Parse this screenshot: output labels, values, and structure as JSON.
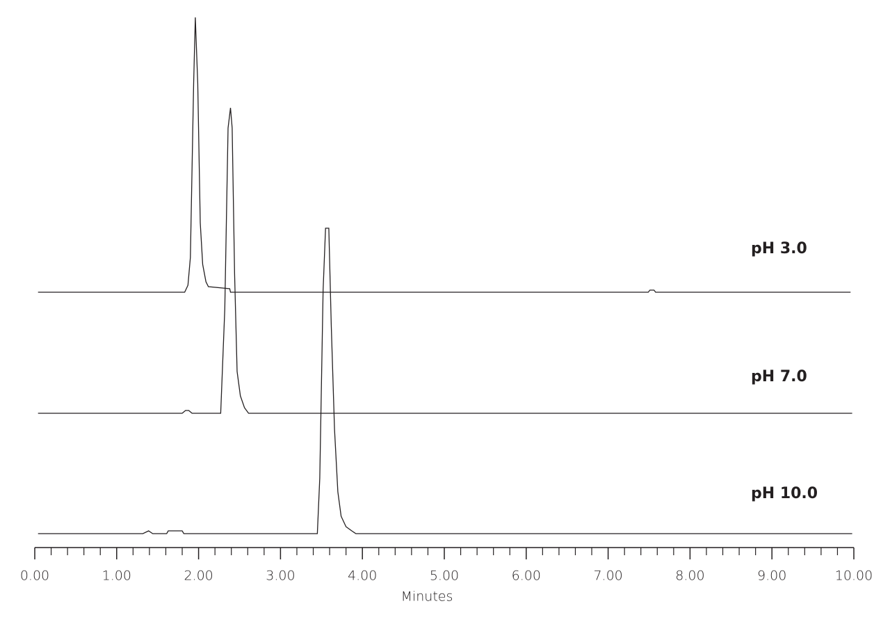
{
  "chart_data": {
    "type": "line",
    "x_label": "Minutes",
    "xlim": [
      0,
      10
    ],
    "xticks": [
      {
        "value": 0,
        "label": "0.00"
      },
      {
        "value": 1,
        "label": "1.00"
      },
      {
        "value": 2,
        "label": "2.00"
      },
      {
        "value": 3,
        "label": "3.00"
      },
      {
        "value": 4,
        "label": "4.00"
      },
      {
        "value": 5,
        "label": "5.00"
      },
      {
        "value": 6,
        "label": "6.00"
      },
      {
        "value": 7,
        "label": "7.00"
      },
      {
        "value": 8,
        "label": "8.00"
      },
      {
        "value": 9,
        "label": "9.00"
      },
      {
        "value": 10,
        "label": "10.00"
      }
    ],
    "minor_xticks": [
      0.2,
      0.4,
      0.6,
      0.8,
      1.2,
      1.4,
      1.6,
      1.8,
      2.2,
      2.4,
      2.6,
      2.8,
      3.2,
      3.4,
      3.6,
      3.8,
      4.2,
      4.4,
      4.6,
      4.8,
      5.2,
      5.4,
      5.6,
      5.8,
      6.2,
      6.4,
      6.6,
      6.8,
      7.2,
      7.4,
      7.6,
      7.8,
      8.2,
      8.4,
      8.6,
      8.8,
      9.2,
      9.4,
      9.6,
      9.8
    ],
    "series": [
      {
        "name": "pH 3.0",
        "color": "#231f20",
        "x": [
          0.04,
          1.83,
          1.87,
          1.9,
          1.94,
          1.96,
          1.99,
          2.02,
          2.05,
          2.09,
          2.12,
          2.38,
          2.39,
          7.49,
          7.51,
          7.56,
          7.58,
          9.96
        ],
        "values": [
          0,
          0,
          10,
          50,
          300,
          395,
          300,
          100,
          40,
          15,
          8,
          5,
          0,
          0,
          3,
          3,
          0,
          0
        ]
      },
      {
        "name": "pH 7.0",
        "color": "#231f20",
        "x": [
          0.04,
          1.8,
          1.84,
          1.88,
          1.92,
          2.27,
          2.32,
          2.36,
          2.39,
          2.41,
          2.44,
          2.47,
          2.51,
          2.56,
          2.61,
          9.98
        ],
        "values": [
          0,
          0,
          4,
          4,
          0,
          0,
          150,
          410,
          439,
          410,
          200,
          60,
          25,
          8,
          0,
          0
        ]
      },
      {
        "name": "pH 10.0",
        "color": "#231f20",
        "x": [
          0.04,
          1.32,
          1.39,
          1.44,
          1.61,
          1.63,
          1.8,
          1.82,
          3.45,
          3.48,
          3.52,
          3.55,
          3.59,
          3.62,
          3.66,
          3.7,
          3.74,
          3.8,
          3.87,
          3.92,
          9.98
        ],
        "values": [
          0,
          0,
          4,
          0,
          0,
          4,
          4,
          0,
          0,
          80,
          350,
          439,
          439,
          300,
          150,
          60,
          25,
          10,
          4,
          0,
          0
        ]
      }
    ]
  }
}
